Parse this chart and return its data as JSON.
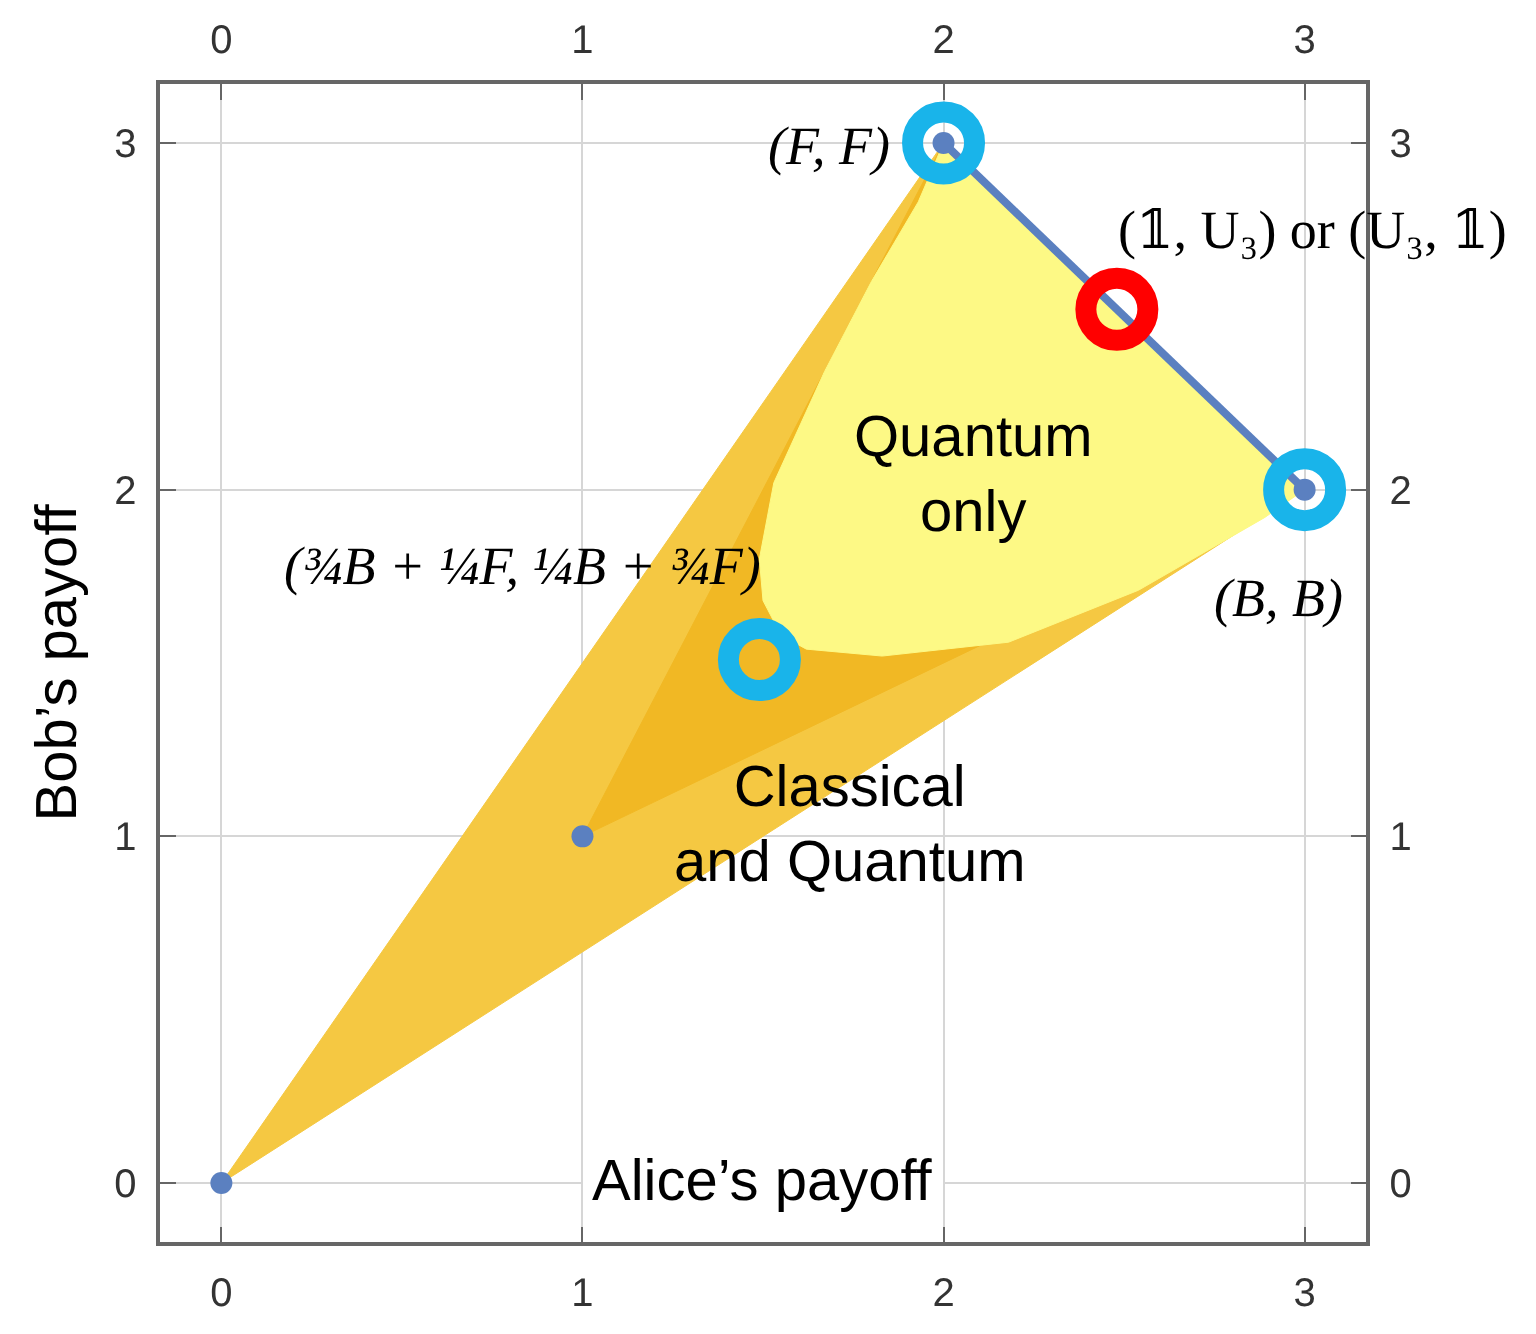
{
  "chart_data": {
    "type": "scatter",
    "xlabel": "Alice’s payoff",
    "ylabel": "Bob’s payoff",
    "xlim": [
      -0.17,
      3.17
    ],
    "xticks": [
      0,
      1,
      2,
      3
    ],
    "x2lim": [
      -0.17,
      3.17
    ],
    "x2ticks": [
      0,
      1,
      2,
      3
    ],
    "ylim": [
      -0.17,
      3.17
    ],
    "yticks": [
      0,
      1,
      2,
      3
    ],
    "y2lim": [
      -0.17,
      3.17
    ],
    "y2ticks": [
      0,
      1,
      2,
      3
    ],
    "grid": true,
    "series": [
      {
        "type": "area",
        "color": "#f5c842",
        "x": [
          0,
          2,
          3,
          0
        ],
        "values": [
          0,
          3,
          2,
          0
        ]
      },
      {
        "type": "area",
        "color": "#f1b824",
        "x": [
          1,
          2,
          3,
          1
        ],
        "values": [
          1,
          3,
          2,
          1
        ]
      },
      {
        "type": "area",
        "color": "#fdf985",
        "x": [
          2,
          1.93,
          1.8,
          1.67,
          1.53,
          1.49,
          1.5,
          1.55,
          1.62,
          1.83,
          2.18,
          2.54,
          2.89,
          3,
          2
        ],
        "values": [
          3,
          2.83,
          2.6,
          2.34,
          2.02,
          1.8,
          1.68,
          1.58,
          1.54,
          1.52,
          1.56,
          1.71,
          1.92,
          2,
          3
        ]
      },
      {
        "type": "line",
        "color": "#5b80c0",
        "x": [
          2,
          3
        ],
        "values": [
          3,
          2
        ]
      },
      {
        "marker": "circle",
        "color": "#5b80c0",
        "x": [
          0,
          1,
          2,
          3
        ],
        "values": [
          0,
          1,
          3,
          2
        ]
      },
      {
        "marker": "circle",
        "color": "#19b4ea",
        "x": [
          2,
          3
        ],
        "values": [
          3,
          2
        ]
      },
      {
        "marker": "circle",
        "color": "#ff0000",
        "x": [
          2.48
        ],
        "values": [
          2.52
        ]
      },
      {
        "marker": "circle",
        "color": "#19b4ea",
        "x": [
          1.49
        ],
        "values": [
          1.51
        ]
      }
    ],
    "annotations": [
      {
        "text": "(F, F)",
        "x": 2,
        "y": 3
      },
      {
        "text": "(𝟙, U₃) or (U₃, 𝟙)",
        "x": 2.48,
        "y": 2.52
      },
      {
        "text": "(B, B)",
        "x": 3,
        "y": 2
      },
      {
        "text": "(¾B + ¼F, ¼B + ¾F)",
        "x": 1.49,
        "y": 1.51
      },
      "Quantum\nonly",
      "Classical\nand Quantum"
    ]
  }
}
